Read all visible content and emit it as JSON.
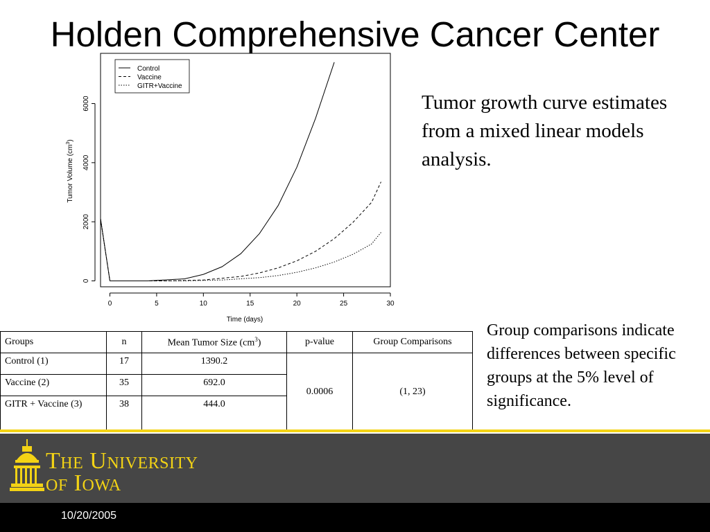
{
  "slide": {
    "title": "Holden Comprehensive Cancer Center",
    "note_growth": "Tumor growth curve estimates from a mixed linear models analysis.",
    "note_groups": "Group comparisons indicate differences between specific groups at the 5% level of significance.",
    "date": "10/20/2005"
  },
  "logo": {
    "icon": "old-capitol-dome-icon",
    "line1": "The University",
    "line2": "of Iowa",
    "color": "#f3d315"
  },
  "table": {
    "headers": [
      "Groups",
      "n",
      "Mean Tumor Size (cm",
      "3",
      ")",
      "p-value",
      "Group Comparisons"
    ],
    "rows": [
      {
        "group": "Control (1)",
        "n": "17",
        "mean": "1390.2"
      },
      {
        "group": "Vaccine (2)",
        "n": "35",
        "mean": "692.0"
      },
      {
        "group": "GITR + Vaccine (3)",
        "n": "38",
        "mean": "444.0"
      }
    ],
    "p_value": "0.0006",
    "comparisons": "(1, 23)"
  },
  "chart_data": {
    "type": "line",
    "xlabel": "Time (days)",
    "ylabel": "Tumor Volume (cm",
    "ylabel_sup": "3",
    "ylabel_close": ")",
    "xlim": [
      -1,
      30
    ],
    "ylim": [
      -200,
      7700
    ],
    "x_ticks": [
      "0",
      "5",
      "10",
      "15",
      "20",
      "25",
      "30"
    ],
    "y_ticks": [
      "0",
      "2000",
      "4000",
      "6000"
    ],
    "legend_position": "top-left",
    "series": [
      {
        "name": "Control",
        "style": "solid",
        "x": [
          -1,
          0,
          4,
          8,
          10,
          12,
          14,
          16,
          18,
          20,
          22,
          24
        ],
        "y": [
          2100,
          0,
          0,
          70,
          220,
          480,
          920,
          1600,
          2550,
          3850,
          5500,
          7400
        ]
      },
      {
        "name": "Vaccine",
        "style": "dashed",
        "x": [
          -1,
          0,
          6,
          10,
          14,
          16,
          18,
          20,
          22,
          24,
          26,
          28,
          29
        ],
        "y": [
          2100,
          0,
          0,
          30,
          150,
          270,
          440,
          680,
          1000,
          1430,
          1980,
          2660,
          3350
        ]
      },
      {
        "name": "GITR+Vaccine",
        "style": "dotted",
        "x": [
          -1,
          0,
          8,
          12,
          16,
          18,
          20,
          22,
          24,
          26,
          28,
          29
        ],
        "y": [
          2100,
          0,
          0,
          30,
          110,
          180,
          290,
          440,
          640,
          900,
          1250,
          1640
        ]
      }
    ]
  }
}
